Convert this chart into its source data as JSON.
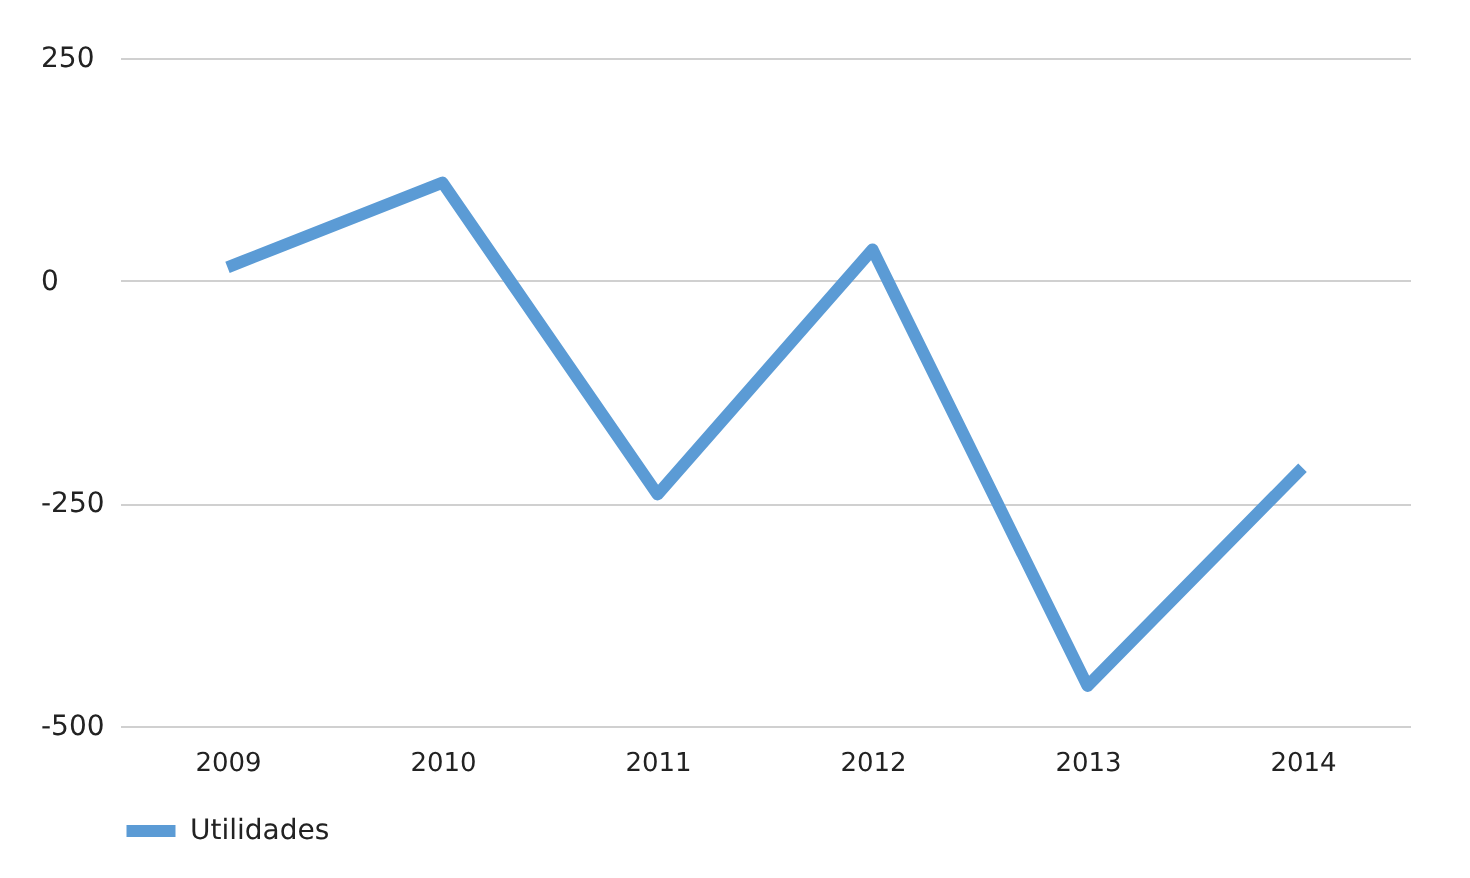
{
  "chart_data": {
    "type": "line",
    "categories": [
      "2009",
      "2010",
      "2011",
      "2012",
      "2013",
      "2014"
    ],
    "series": [
      {
        "name": "Utilidades",
        "color": "#5b9bd5",
        "values": [
          15,
          110,
          -240,
          35,
          -455,
          -210
        ]
      }
    ],
    "ylim": [
      -500,
      250
    ],
    "yticks": [
      -500,
      -250,
      0,
      250
    ],
    "grid": "y",
    "legend": "bottom",
    "marker": "none",
    "line_style": "solid"
  }
}
